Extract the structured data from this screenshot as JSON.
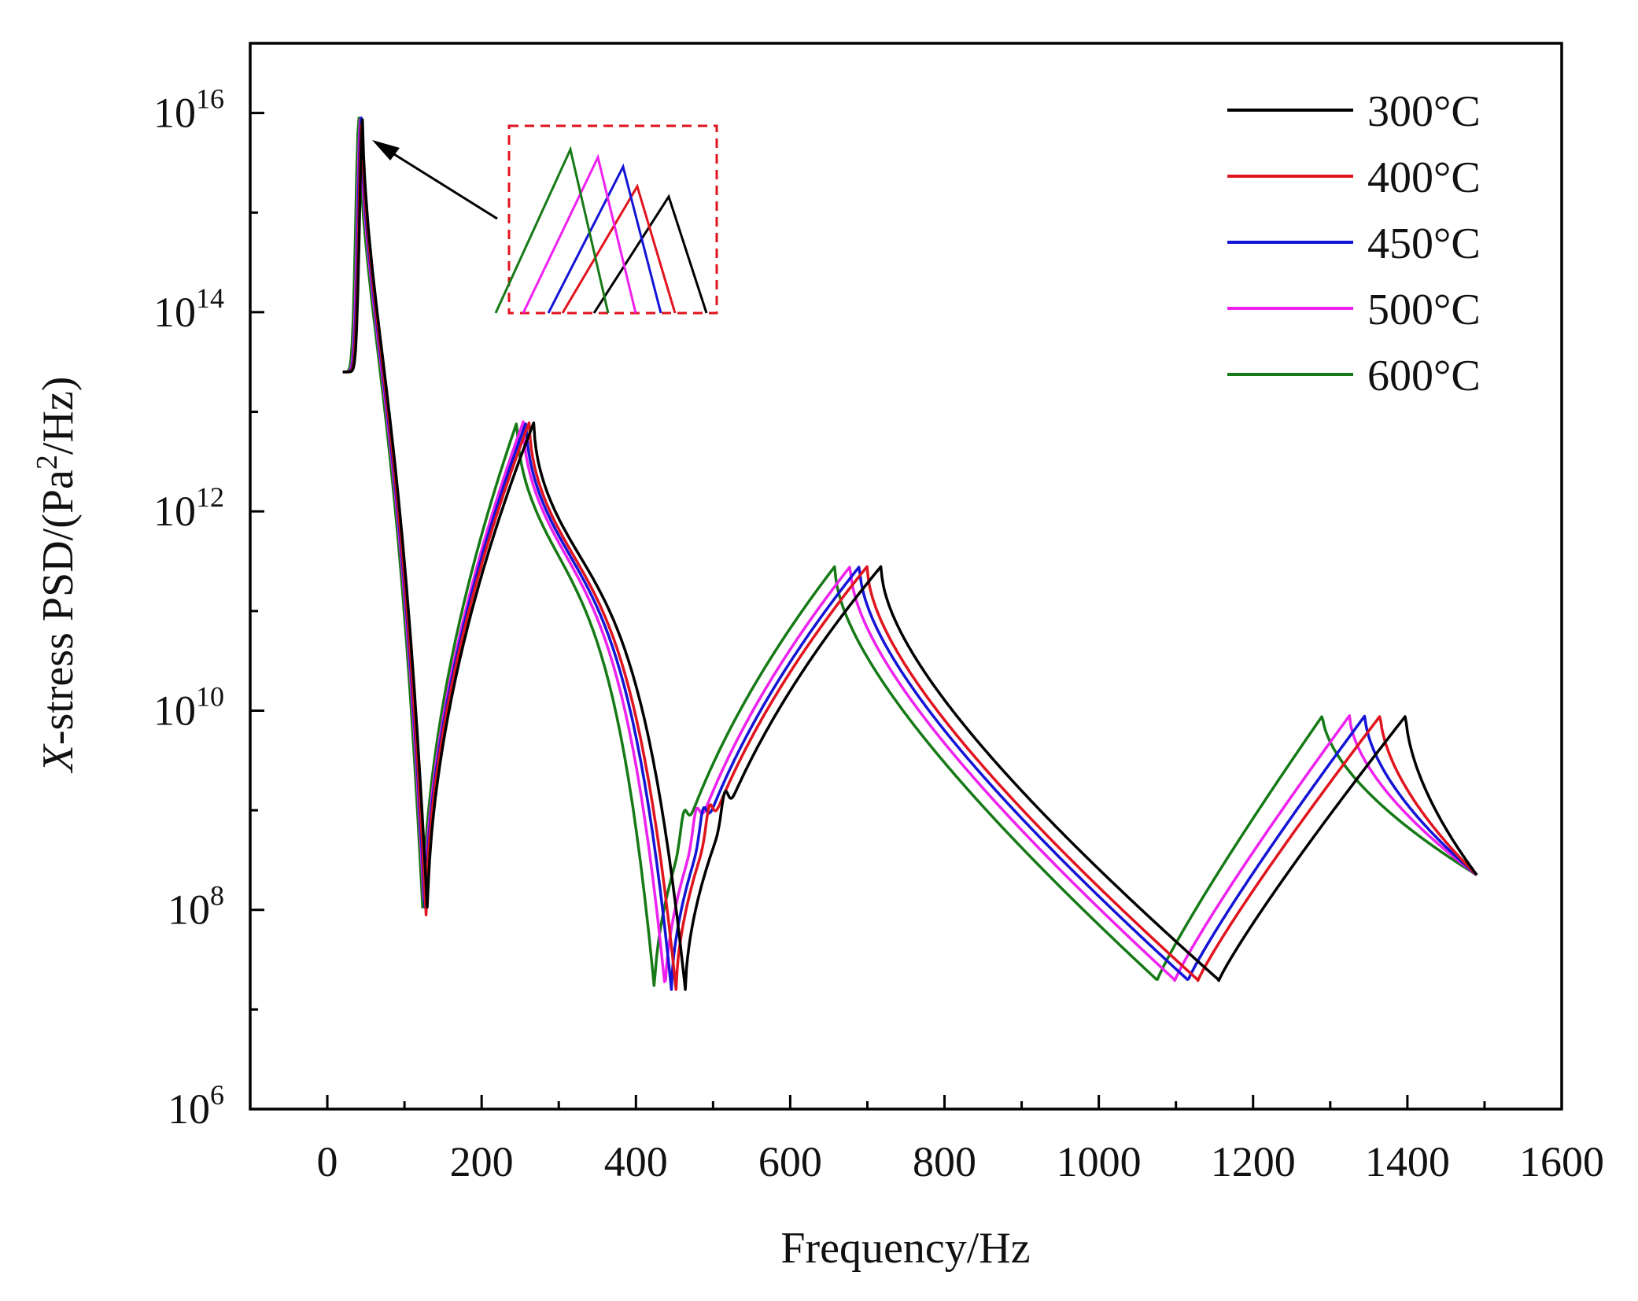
{
  "chart_data": {
    "type": "line",
    "title": "",
    "xlabel": "Frequency/Hz",
    "ylabel": {
      "var": "X",
      "text": "-stress PSD/(Pa",
      "sup": "2",
      "tail": "/Hz)"
    },
    "xlim": [
      -100,
      1600
    ],
    "ylim_log10": [
      6,
      16.7
    ],
    "x_ticks": [
      0,
      200,
      400,
      600,
      800,
      1000,
      1200,
      1400,
      1600
    ],
    "y_ticks": [
      {
        "base": "10",
        "exp": "6",
        "value": 6
      },
      {
        "base": "10",
        "exp": "8",
        "value": 8
      },
      {
        "base": "10",
        "exp": "10",
        "value": 10
      },
      {
        "base": "10",
        "exp": "12",
        "value": 12
      },
      {
        "base": "10",
        "exp": "14",
        "value": 14
      },
      {
        "base": "10",
        "exp": "16",
        "value": 16
      }
    ],
    "legend_position": "top-right",
    "series": [
      {
        "name": "300°C",
        "color": "#000000",
        "peaks": [
          46,
          268,
          718,
          1398
        ],
        "anti": [
          130,
          464,
          1155
        ],
        "shoulder": 515
      },
      {
        "name": "400°C",
        "color": "#e0141e",
        "peaks": [
          45,
          262,
          700,
          1365
        ],
        "anti": [
          128,
          452,
          1128
        ],
        "shoulder": 495
      },
      {
        "name": "450°C",
        "color": "#1414d6",
        "peaks": [
          44,
          258,
          690,
          1345
        ],
        "anti": [
          127,
          446,
          1115
        ],
        "shoulder": 487
      },
      {
        "name": "500°C",
        "color": "#ee22ee",
        "peaks": [
          43,
          254,
          678,
          1325
        ],
        "anti": [
          126,
          438,
          1098
        ],
        "shoulder": 478
      },
      {
        "name": "600°C",
        "color": "#167a16",
        "peaks": [
          41,
          246,
          658,
          1290
        ],
        "anti": [
          124,
          424,
          1075
        ],
        "shoulder": 462
      }
    ],
    "annotation": {
      "type": "zoom-inset",
      "target": "first resonance peak near 40 Hz"
    }
  }
}
